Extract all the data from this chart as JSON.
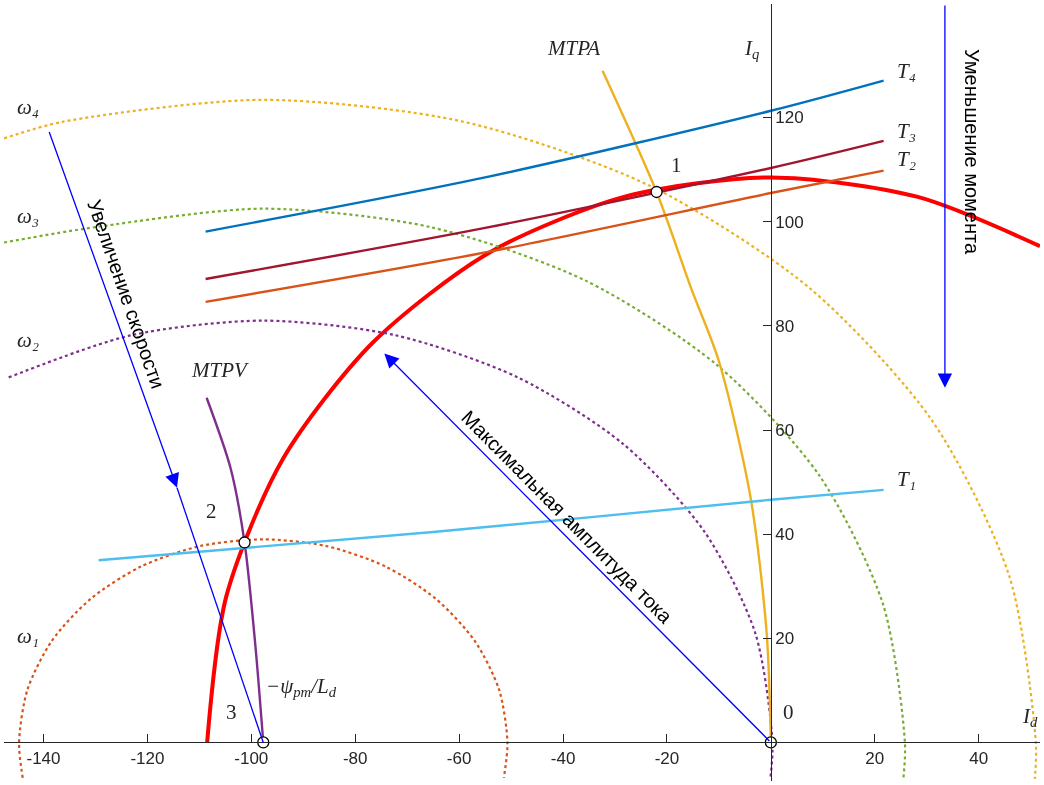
{
  "chart_data": {
    "type": "line",
    "xlabel": "I$_{d}$",
    "ylabel": "I$_{q}$",
    "xlim": [
      -147.6,
      51.8
    ],
    "ylim": [
      -7.4,
      141.8
    ],
    "xticks": [
      -140,
      -120,
      -100,
      -80,
      -60,
      -40,
      -20,
      20,
      40
    ],
    "yticks": [
      20,
      40,
      60,
      80,
      100,
      120
    ],
    "series": [
      {
        "color": "#ff0000",
        "x": [
          -108.5,
          -104.8,
          -94.0,
          -76.7,
          -54.3,
          -28.1,
          0,
          28.1,
          51.8
        ],
        "values": [
          0,
          28.1,
          54.3,
          76.7,
          94.0,
          104.8,
          108.5,
          104.8,
          95.3
        ]
      },
      {
        "color": "#d95319",
        "line_style": "dotted",
        "x": [
          -144.0,
          -144.7,
          -143.1,
          -138.4,
          -130.9,
          -121.2,
          -109.9,
          -97.7,
          -85.5,
          -74.2,
          -64.5,
          -57.0,
          -52.3,
          -50.7,
          -51.4
        ],
        "values": [
          -6.8,
          0,
          10.1,
          19.5,
          27.6,
          33.8,
          37.7,
          39,
          37.7,
          33.8,
          27.6,
          19.5,
          10.1,
          0,
          -6.8
        ]
      },
      {
        "color": "#7e2f8e",
        "line_style": "dotted",
        "x": [
          -146.7,
          -123.1,
          -97.7,
          -72.3,
          -48.7,
          -28.4,
          -12.8,
          -3.0,
          0.3,
          -0.1
        ],
        "values": [
          70.1,
          78.2,
          81,
          78.2,
          70.1,
          57.3,
          40.5,
          21.0,
          0,
          -7
        ]
      },
      {
        "color": "#77ac30",
        "line_style": "dotted",
        "x": [
          -147.6,
          -129.7,
          -97.7,
          -65.7,
          -35.9,
          -10.4,
          9.3,
          21.6,
          25.8,
          25.5
        ],
        "values": [
          96,
          99.0,
          102.5,
          99.0,
          88.8,
          72.5,
          51.3,
          26.5,
          0,
          -7
        ]
      },
      {
        "color": "#edb120",
        "line_style": "dotted",
        "x": [
          -147.6,
          -136.2,
          -97.7,
          -59.2,
          -23.3,
          7.4,
          31.1,
          45.9,
          51.0,
          50.8
        ],
        "values": [
          116,
          119.2,
          123.4,
          119.2,
          106.9,
          87.3,
          61.7,
          31.9,
          0,
          -7
        ]
      },
      {
        "color": "#edb120",
        "x": [
          0,
          -0.8,
          -3.9,
          -10.0,
          -15.3,
          -22.0,
          -32.4
        ],
        "values": [
          0,
          20.9,
          47,
          73.2,
          87.1,
          105.7,
          129
        ]
      },
      {
        "color": "#7e2f8e",
        "x": [
          -97.7,
          -99.2,
          -101.3,
          -104.0,
          -108.6
        ],
        "values": [
          0,
          18.4,
          38.4,
          52.7,
          66.2
        ]
      },
      {
        "color": "#0072bd",
        "x": [
          -108.8,
          -55,
          0,
          21.7
        ],
        "values": [
          98.1,
          108.5,
          121.3,
          127.1
        ]
      },
      {
        "color": "#a2142f",
        "x": [
          -108.8,
          -55,
          0,
          21.7
        ],
        "values": [
          89,
          98.8,
          110.3,
          115.5
        ]
      },
      {
        "color": "#d95319",
        "x": [
          -108.8,
          -55,
          0,
          21.7
        ],
        "values": [
          84.6,
          94.1,
          105.5,
          109.8
        ]
      },
      {
        "color": "#4dbeee",
        "x": [
          -129.4,
          -65,
          0,
          21.7
        ],
        "values": [
          35,
          40.4,
          46.6,
          48.5
        ]
      },
      {
        "type": "scatter",
        "color": "#ffffff",
        "marker": "circle",
        "x": [
          0,
          -22.0,
          -101.3,
          -97.7
        ],
        "values": [
          0,
          105.7,
          38.4,
          0
        ]
      }
    ],
    "annotations": [
      "MTPA",
      "MTPV",
      "T₄",
      "T₃",
      "T₂",
      "T₁",
      "ω₄",
      "ω₃",
      "ω₂",
      "ω₁",
      "1",
      "2",
      "3",
      "0",
      "−ψ$_{pm}$/L$_{d}$",
      "Увеличение скорости",
      "Максимальная амплитуда тока",
      "Уменьшение момента"
    ]
  }
}
